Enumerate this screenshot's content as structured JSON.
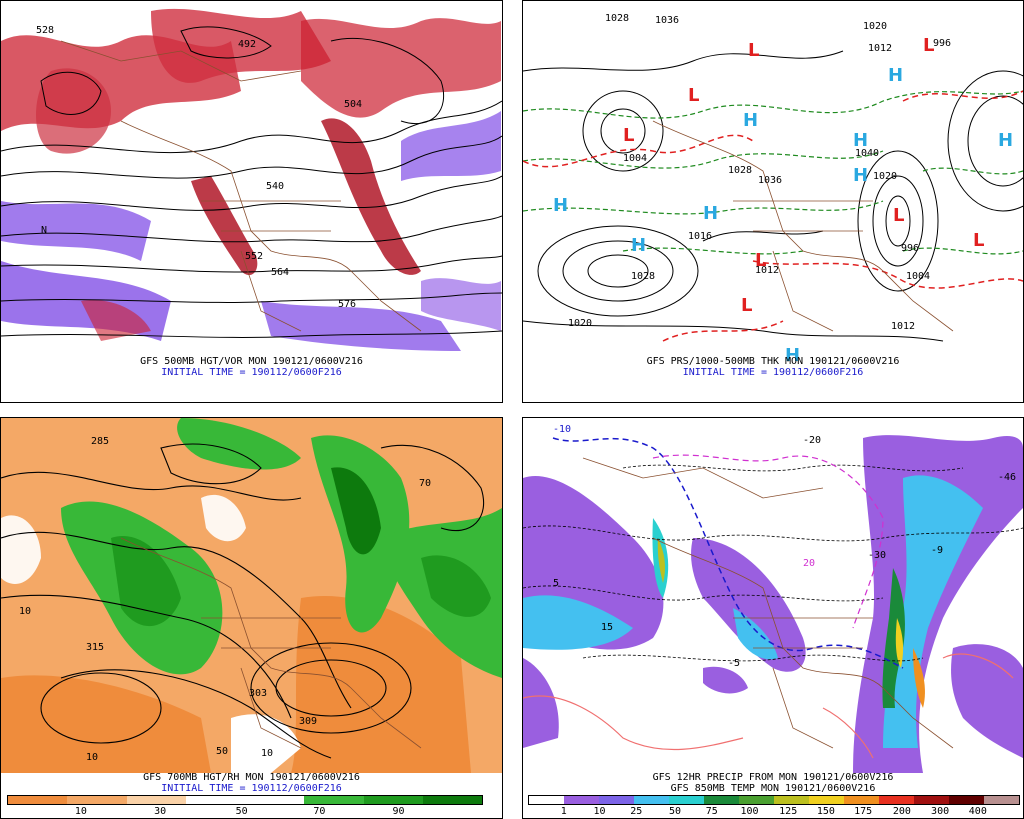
{
  "panels": [
    {
      "caption1": "GFS 500MB HGT/VOR MON 190121/0600V216",
      "caption2": "INITIAL TIME = 190112/0600F216",
      "labels": [
        "528",
        "492",
        "504",
        "540",
        "552",
        "564",
        "576",
        "N"
      ]
    },
    {
      "caption1": "GFS PRS/1000-500MB THK MON 190121/0600V216",
      "caption2": "INITIAL TIME = 190112/0600F216",
      "labels": [
        "1028",
        "1036",
        "1020",
        "1012",
        "996",
        "1004",
        "1028",
        "1036",
        "1020",
        "1016",
        "1012",
        "1004",
        "996",
        "1028",
        "1020",
        "1012",
        "1040"
      ],
      "highs": 9,
      "lows": 8
    },
    {
      "caption1": "GFS 700MB HGT/RH MON 190121/0600V216",
      "caption2": "INITIAL TIME = 190112/0600F216",
      "labels": [
        "285",
        "10",
        "315",
        "303",
        "309",
        "10",
        "50",
        "10",
        "70"
      ],
      "colorbar": {
        "colors": [
          "#ef8c3c",
          "#f4a866",
          "#fad2a8",
          "#ffffff",
          "#ffffff",
          "#38b838",
          "#1f9b1f",
          "#0d7a0d"
        ],
        "ticks": [
          "10",
          "30",
          "50",
          "70",
          "90"
        ]
      }
    },
    {
      "caption1": "GFS 12HR PRECIP FROM MON 190121/0600V216",
      "caption2": "GFS 850MB TEMP MON 190121/0600V216",
      "labels": [
        "-10",
        "-20",
        "-30",
        "-46",
        "15",
        "20",
        "-5",
        "-9",
        "5"
      ],
      "colorbar": {
        "colors": [
          "#ffffff",
          "#9a5fe0",
          "#7c64e8",
          "#44c0f0",
          "#2ad0d0",
          "#1a8a3a",
          "#4aa030",
          "#bcc020",
          "#f0d020",
          "#f09020",
          "#e83020",
          "#a01010",
          "#600000",
          "#b89090"
        ],
        "ticks": [
          "1",
          "10",
          "25",
          "50",
          "75",
          "100",
          "125",
          "150",
          "175",
          "200",
          "300",
          "400"
        ]
      }
    }
  ],
  "colors": {
    "vort_red": "#cc2030",
    "vort_purple": "#8a5ae8",
    "thk_green": "#1e8a1e",
    "thk_red": "#e02020",
    "high_blue": "#2aa8e0",
    "low_red": "#e02020",
    "border_brown": "#8a5030"
  }
}
